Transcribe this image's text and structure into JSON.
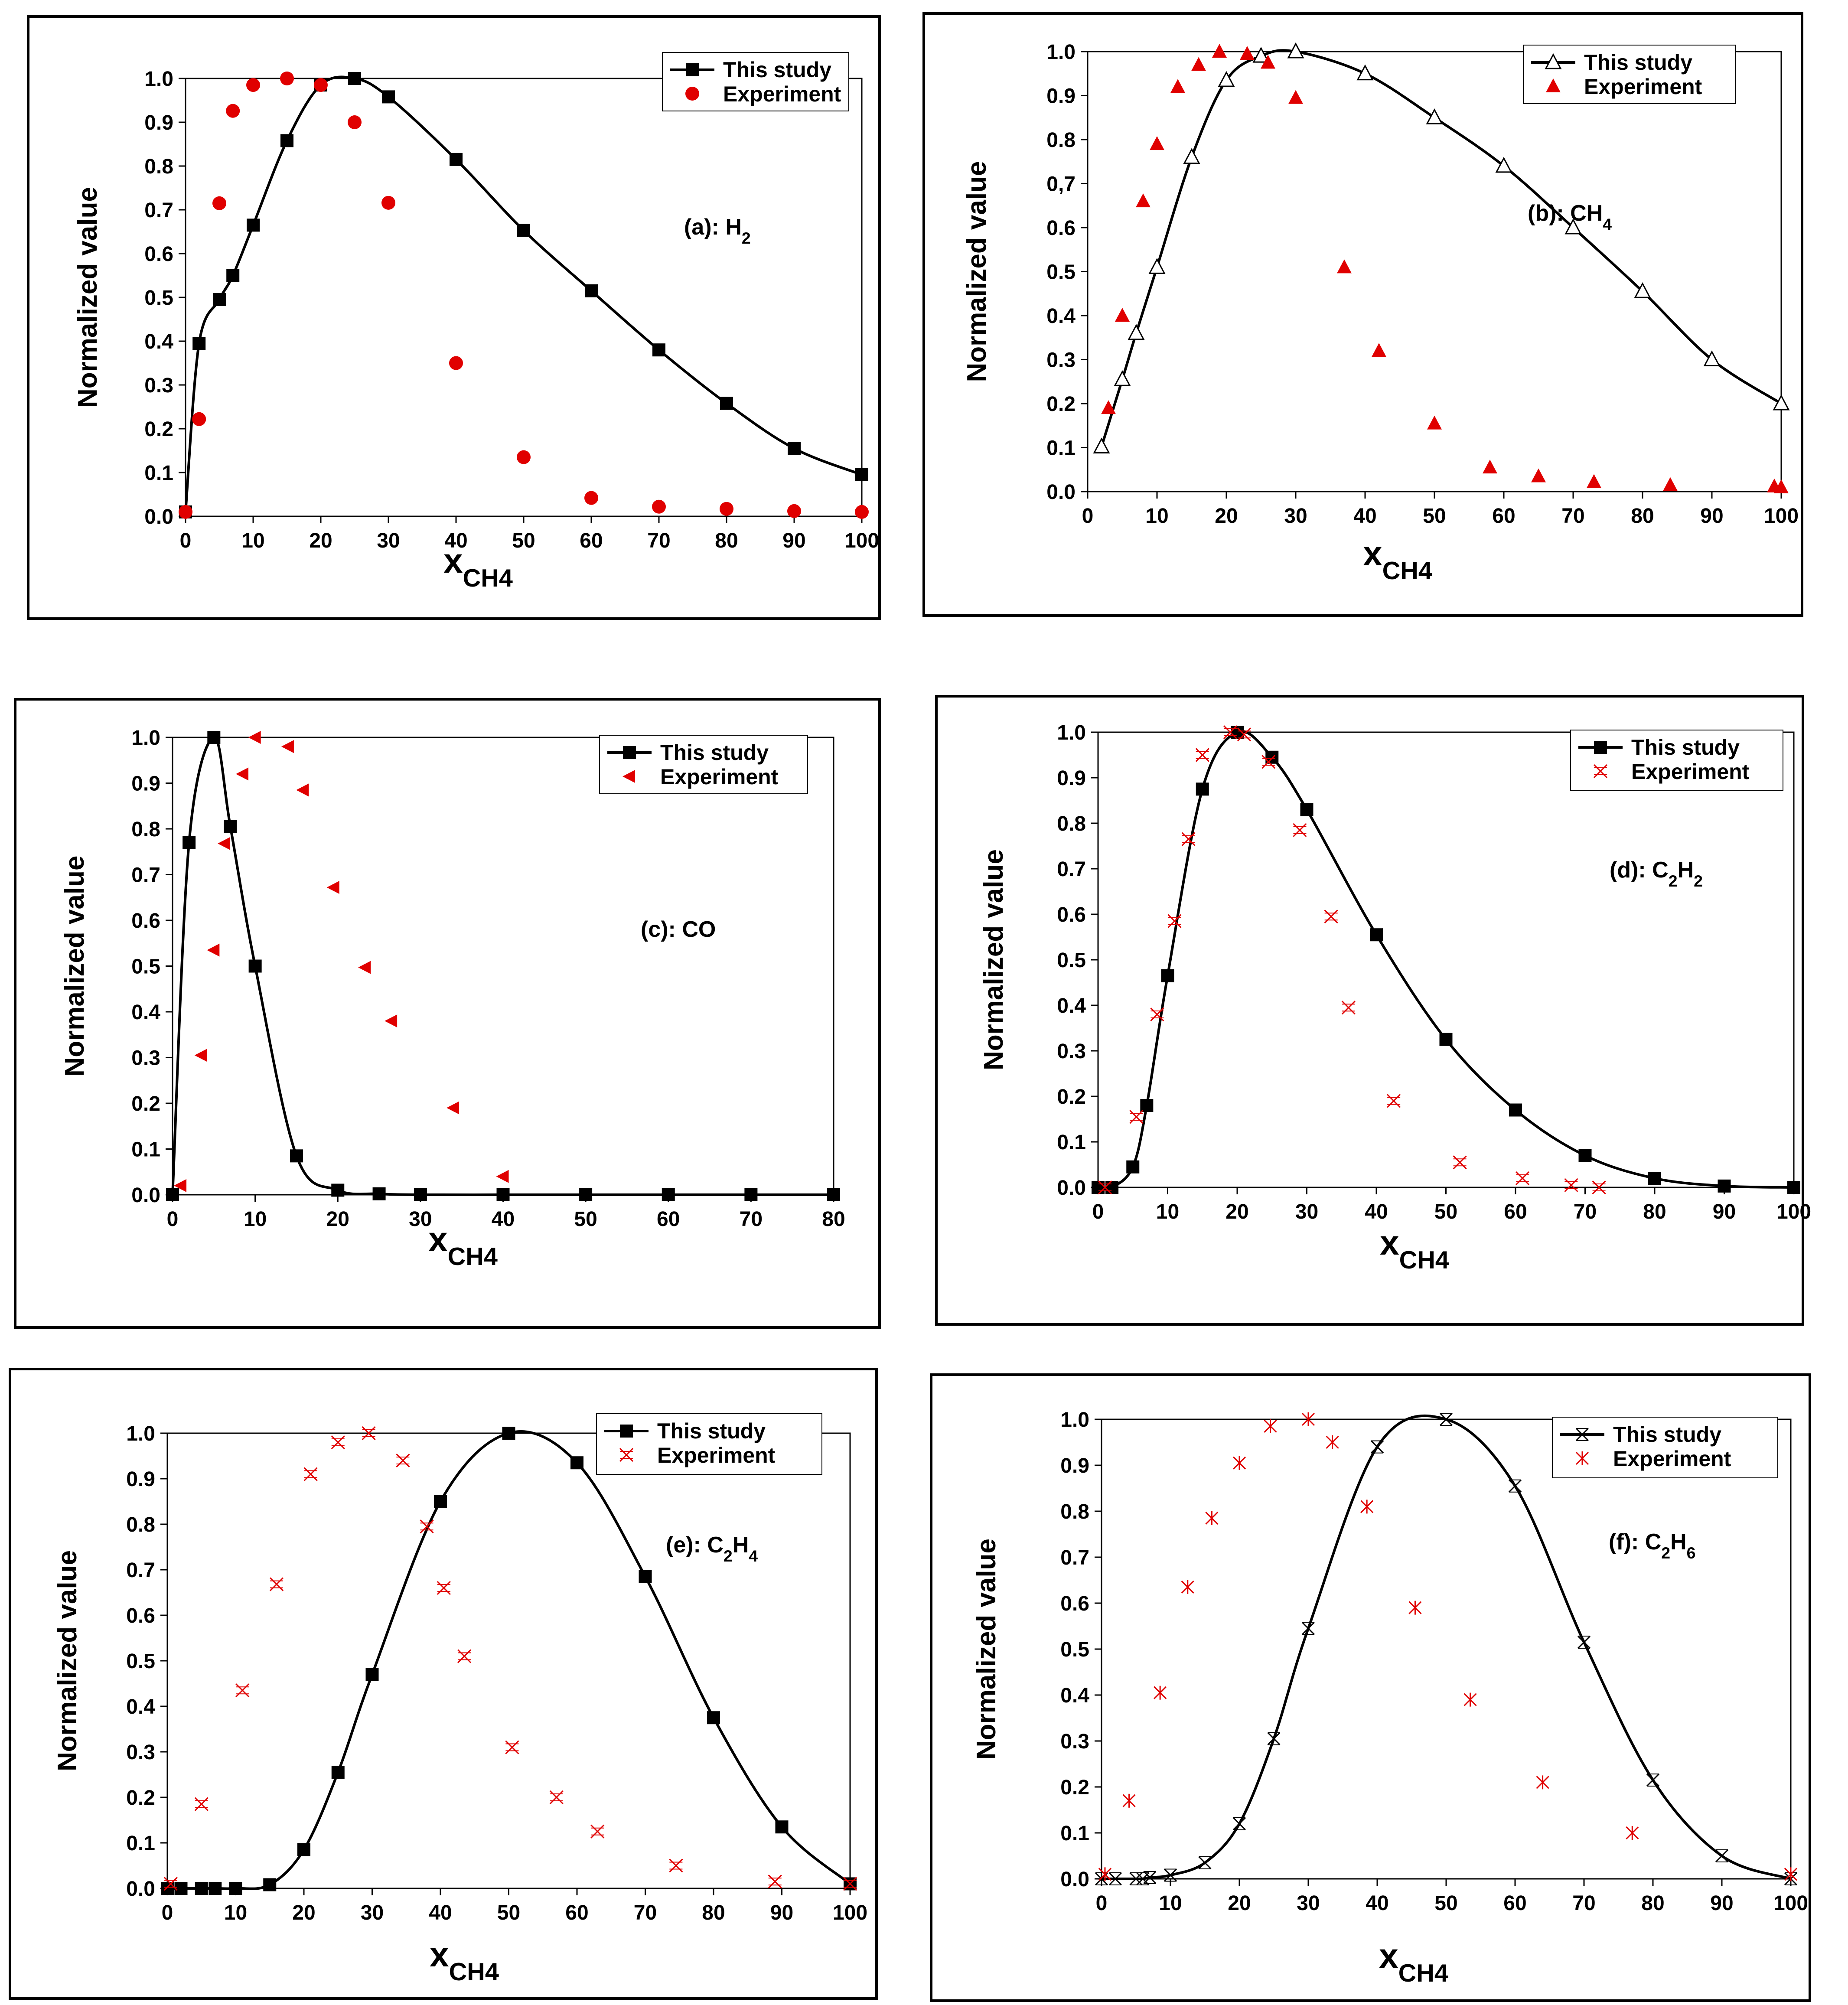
{
  "colors": {
    "model": "#000000",
    "experiment": "#e00000",
    "frame": "#000000"
  },
  "chart_data": [
    {
      "id": "a",
      "type": "line",
      "annotation": "(a): H|2",
      "ylabel": "Normalized value",
      "xlabel": "x|CH4",
      "xlim": [
        0,
        100
      ],
      "ylim": [
        0,
        1.0
      ],
      "xticks": [
        0,
        10,
        20,
        30,
        40,
        50,
        60,
        70,
        80,
        90,
        100
      ],
      "xtick_labels": [
        "0",
        "10",
        "20",
        "30",
        "40",
        "50",
        "60",
        "70",
        "80",
        "90",
        "100"
      ],
      "yticks": [
        0,
        0.1,
        0.2,
        0.3,
        0.4,
        0.5,
        0.6,
        0.7,
        0.8,
        0.9,
        1.0
      ],
      "ytick_labels": [
        "0.0",
        "0.1",
        "0.2",
        "0.3",
        "0.4",
        "0.5",
        "0.6",
        "0.7",
        "0.8",
        "0.9",
        "1.0"
      ],
      "legend": {
        "position": "top-right",
        "model_label": "This study",
        "exp_label": "Experiment"
      },
      "series": [
        {
          "name": "This study",
          "marker": "square",
          "color": "#000000",
          "x": [
            0,
            2,
            5,
            7,
            10,
            15,
            20,
            25,
            30,
            40,
            50,
            60,
            70,
            80,
            90,
            100
          ],
          "y": [
            0.01,
            0.395,
            0.495,
            0.55,
            0.665,
            0.858,
            0.985,
            1.0,
            0.958,
            0.815,
            0.653,
            0.515,
            0.38,
            0.258,
            0.155,
            0.095
          ]
        },
        {
          "name": "Experiment",
          "marker": "circle",
          "color": "#e00000",
          "x": [
            0,
            2,
            5,
            7,
            10,
            15,
            20,
            25,
            30,
            40,
            50,
            60,
            70,
            80,
            90,
            100
          ],
          "y": [
            0.01,
            0.222,
            0.715,
            0.926,
            0.985,
            1.0,
            0.985,
            0.9,
            0.716,
            0.35,
            0.135,
            0.042,
            0.022,
            0.017,
            0.012,
            0.01
          ]
        }
      ]
    },
    {
      "id": "b",
      "type": "line",
      "annotation": "(b): CH|4",
      "ylabel": "Normalized value",
      "xlabel": "x|CH4",
      "xlim": [
        0,
        100
      ],
      "ylim": [
        0,
        1.0
      ],
      "xticks": [
        0,
        10,
        20,
        30,
        40,
        50,
        60,
        70,
        80,
        90,
        100
      ],
      "xtick_labels": [
        "0",
        "10",
        "20",
        "30",
        "40",
        "50",
        "60",
        "70",
        "80",
        "90",
        "100"
      ],
      "yticks": [
        0,
        0.1,
        0.2,
        0.3,
        0.4,
        0.5,
        0.6,
        0.7,
        0.8,
        0.9,
        1.0
      ],
      "ytick_labels": [
        "0.0",
        "0.1",
        "0.2",
        "0.3",
        "0.4",
        "0.5",
        "0.6",
        "0,7",
        "0.8",
        "0.9",
        "1.0"
      ],
      "legend": {
        "position": "top-right",
        "model_label": "This study",
        "exp_label": "Experiment"
      },
      "series": [
        {
          "name": "This study",
          "marker": "open-triangle",
          "color": "#000000",
          "x": [
            2,
            5,
            7,
            10,
            15,
            20,
            25,
            30,
            40,
            50,
            60,
            70,
            80,
            90,
            100
          ],
          "y": [
            0.102,
            0.255,
            0.36,
            0.51,
            0.76,
            0.935,
            0.99,
            1.0,
            0.95,
            0.85,
            0.74,
            0.6,
            0.455,
            0.3,
            0.2
          ]
        },
        {
          "name": "Experiment",
          "marker": "triangle",
          "color": "#e00000",
          "x": [
            3,
            5,
            8,
            10,
            13,
            16,
            19,
            23,
            26,
            30,
            37,
            42,
            50,
            58,
            65,
            73,
            84,
            99,
            100
          ],
          "y": [
            0.19,
            0.4,
            0.66,
            0.79,
            0.92,
            0.97,
            1.0,
            0.995,
            0.975,
            0.895,
            0.51,
            0.32,
            0.155,
            0.055,
            0.035,
            0.022,
            0.015,
            0.012,
            0.01
          ]
        }
      ]
    },
    {
      "id": "c",
      "type": "line",
      "annotation": "(c): CO",
      "ylabel": "Normalized value",
      "xlabel": "x|CH4",
      "xlim": [
        0,
        80
      ],
      "ylim": [
        0,
        1.0
      ],
      "xticks": [
        0,
        10,
        20,
        30,
        40,
        50,
        60,
        70,
        80
      ],
      "xtick_labels": [
        "0",
        "10",
        "20",
        "30",
        "40",
        "50",
        "60",
        "70",
        "80"
      ],
      "yticks": [
        0,
        0.1,
        0.2,
        0.3,
        0.4,
        0.5,
        0.6,
        0.7,
        0.8,
        0.9,
        1.0
      ],
      "ytick_labels": [
        "0.0",
        "0.1",
        "0.2",
        "0.3",
        "0.4",
        "0.5",
        "0.6",
        "0.7",
        "0.8",
        "0.9",
        "1.0"
      ],
      "legend": {
        "position": "top-right",
        "model_label": "This study",
        "exp_label": "Experiment"
      },
      "series": [
        {
          "name": "This study",
          "marker": "square",
          "color": "#000000",
          "x": [
            0,
            2,
            5,
            7,
            10,
            15,
            20,
            25,
            30,
            40,
            50,
            60,
            70,
            80
          ],
          "y": [
            0.0,
            0.77,
            1.0,
            0.805,
            0.5,
            0.085,
            0.01,
            0.002,
            0.0,
            0.0,
            0.0,
            0.0,
            0.0,
            0.0
          ]
        },
        {
          "name": "Experiment",
          "marker": "left-triangle",
          "color": "#e00000",
          "x": [
            1,
            3.5,
            5,
            6.3,
            8.5,
            10,
            14,
            15.8,
            19.5,
            23.3,
            26.5,
            34,
            40
          ],
          "y": [
            0.02,
            0.305,
            0.535,
            0.768,
            0.92,
            1.0,
            0.98,
            0.885,
            0.672,
            0.497,
            0.38,
            0.19,
            0.04
          ]
        }
      ]
    },
    {
      "id": "d",
      "type": "line",
      "annotation": "(d): C|2|H|2",
      "ylabel": "Normalized value",
      "xlabel": "x|CH4",
      "xlim": [
        0,
        100
      ],
      "ylim": [
        0,
        1.0
      ],
      "xticks": [
        0,
        10,
        20,
        30,
        40,
        50,
        60,
        70,
        80,
        90,
        100
      ],
      "xtick_labels": [
        "0",
        "10",
        "20",
        "30",
        "40",
        "50",
        "60",
        "70",
        "80",
        "90",
        "100"
      ],
      "yticks": [
        0,
        0.1,
        0.2,
        0.3,
        0.4,
        0.5,
        0.6,
        0.7,
        0.8,
        0.9,
        1.0
      ],
      "ytick_labels": [
        "0.0",
        "0.1",
        "0.2",
        "0.3",
        "0.4",
        "0.5",
        "0.6",
        "0.7",
        "0.8",
        "0.9",
        "1.0"
      ],
      "legend": {
        "position": "top-right",
        "model_label": "This study",
        "exp_label": "Experiment"
      },
      "series": [
        {
          "name": "This study",
          "marker": "square",
          "color": "#000000",
          "x": [
            0,
            2,
            5,
            7,
            10,
            15,
            20,
            25,
            30,
            40,
            50,
            60,
            70,
            80,
            90,
            100
          ],
          "y": [
            0.0,
            0.0,
            0.045,
            0.18,
            0.465,
            0.875,
            1.0,
            0.945,
            0.83,
            0.555,
            0.325,
            0.17,
            0.07,
            0.02,
            0.003,
            0.0
          ]
        },
        {
          "name": "Experiment",
          "marker": "cross-x",
          "color": "#e00000",
          "x": [
            1,
            5.5,
            8.5,
            11,
            13,
            15,
            19,
            21,
            24.5,
            29,
            33.5,
            36,
            42.5,
            52,
            61,
            68,
            72
          ],
          "y": [
            0.0,
            0.155,
            0.38,
            0.585,
            0.765,
            0.95,
            1.0,
            0.995,
            0.935,
            0.785,
            0.595,
            0.395,
            0.19,
            0.055,
            0.02,
            0.005,
            0.0
          ]
        }
      ]
    },
    {
      "id": "e",
      "type": "line",
      "annotation": "(e): C|2|H|4",
      "ylabel": "Normalized value",
      "xlabel": "x|CH4",
      "xlim": [
        0,
        100
      ],
      "ylim": [
        0,
        1.0
      ],
      "xticks": [
        0,
        10,
        20,
        30,
        40,
        50,
        60,
        70,
        80,
        90,
        100
      ],
      "xtick_labels": [
        "0",
        "10",
        "20",
        "30",
        "40",
        "50",
        "60",
        "70",
        "80",
        "90",
        "100"
      ],
      "yticks": [
        0,
        0.1,
        0.2,
        0.3,
        0.4,
        0.5,
        0.6,
        0.7,
        0.8,
        0.9,
        1.0
      ],
      "ytick_labels": [
        "0.0",
        "0.1",
        "0.2",
        "0.3",
        "0.4",
        "0.5",
        "0.6",
        "0.7",
        "0.8",
        "0.9",
        "1.0"
      ],
      "legend": {
        "position": "top-right",
        "model_label": "This study",
        "exp_label": "Experiment"
      },
      "series": [
        {
          "name": "This study",
          "marker": "square",
          "color": "#000000",
          "x": [
            0,
            2,
            5,
            7,
            10,
            15,
            20,
            25,
            30,
            40,
            50,
            60,
            70,
            80,
            90,
            100
          ],
          "y": [
            0.0,
            0.0,
            0.0,
            0.0,
            0.0,
            0.008,
            0.085,
            0.255,
            0.47,
            0.85,
            1.0,
            0.935,
            0.685,
            0.375,
            0.135,
            0.01
          ]
        },
        {
          "name": "Experiment",
          "marker": "cross-x",
          "color": "#e00000",
          "x": [
            0.5,
            5,
            11,
            16,
            21,
            25,
            29.5,
            34.5,
            38,
            40.5,
            43.5,
            50.5,
            57,
            63,
            74.5,
            89,
            100
          ],
          "y": [
            0.01,
            0.185,
            0.435,
            0.668,
            0.91,
            0.98,
            1.0,
            0.94,
            0.795,
            0.66,
            0.51,
            0.31,
            0.2,
            0.125,
            0.05,
            0.015,
            0.01
          ]
        }
      ]
    },
    {
      "id": "f",
      "type": "line",
      "annotation": "(f): C|2|H|6",
      "ylabel": "Normalized value",
      "xlabel": "x|CH4",
      "xlim": [
        0,
        100
      ],
      "ylim": [
        0,
        1.0
      ],
      "xticks": [
        0,
        10,
        20,
        30,
        40,
        50,
        60,
        70,
        80,
        90,
        100
      ],
      "xtick_labels": [
        "0",
        "10",
        "20",
        "30",
        "40",
        "50",
        "60",
        "70",
        "80",
        "90",
        "100"
      ],
      "yticks": [
        0,
        0.1,
        0.2,
        0.3,
        0.4,
        0.5,
        0.6,
        0.7,
        0.8,
        0.9,
        1.0
      ],
      "ytick_labels": [
        "0.0",
        "0.1",
        "0.2",
        "0.3",
        "0.4",
        "0.5",
        "0.6",
        "0.7",
        "0.8",
        "0.9",
        "1.0"
      ],
      "legend": {
        "position": "top-right",
        "model_label": "This study",
        "exp_label": "Experiment"
      },
      "series": [
        {
          "name": "This study",
          "marker": "boxed-x",
          "color": "#000000",
          "x": [
            0,
            2,
            5,
            6,
            7,
            10,
            15,
            20,
            25,
            30,
            40,
            50,
            60,
            70,
            80,
            90,
            100
          ],
          "y": [
            0.0,
            0.0,
            0.0,
            0.0,
            0.003,
            0.008,
            0.035,
            0.12,
            0.305,
            0.545,
            0.94,
            1.0,
            0.855,
            0.515,
            0.215,
            0.05,
            0.0
          ]
        },
        {
          "name": "Experiment",
          "marker": "asterisk",
          "color": "#e00000",
          "x": [
            0.5,
            4,
            8.5,
            12.5,
            16,
            20,
            24.5,
            30,
            33.5,
            38.5,
            45.5,
            53.5,
            64,
            77,
            100
          ],
          "y": [
            0.01,
            0.17,
            0.405,
            0.635,
            0.785,
            0.905,
            0.985,
            1.0,
            0.95,
            0.81,
            0.59,
            0.39,
            0.21,
            0.1,
            0.01
          ]
        }
      ]
    }
  ]
}
